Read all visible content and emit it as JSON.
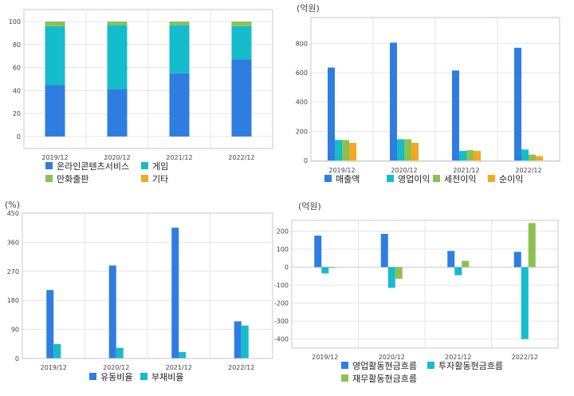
{
  "colors": {
    "blue": "#2f7de1",
    "teal": "#15bccb",
    "green": "#8cc152",
    "orange": "#f5a623",
    "grid": "#e6e6e6",
    "frame": "#c8c8c8"
  },
  "chart_data": [
    {
      "type": "bar",
      "stacked": true,
      "unit": "",
      "categories": [
        "2019/12",
        "2020/12",
        "2021/12",
        "2022/12"
      ],
      "ylim": [
        0,
        100
      ],
      "yticks": [
        0,
        20,
        40,
        60,
        80,
        100
      ],
      "series": [
        {
          "name": "온라인콘텐츠서비스",
          "values": [
            45,
            41,
            55,
            67
          ],
          "color": "#2f7de1"
        },
        {
          "name": "게임",
          "values": [
            51,
            56,
            42,
            29
          ],
          "color": "#15bccb"
        },
        {
          "name": "만화출판",
          "values": [
            4,
            3,
            3,
            4
          ],
          "color": "#8cc152"
        },
        {
          "name": "기타",
          "values": [
            0,
            0,
            0,
            0
          ],
          "color": "#f5a623"
        }
      ],
      "legend": "bottom-left"
    },
    {
      "type": "bar",
      "unit": "(억원)",
      "categories": [
        "2019/12",
        "2020/12",
        "2021/12",
        "2022/12"
      ],
      "ylim": [
        0,
        900
      ],
      "yticks": [
        0,
        200,
        400,
        600,
        800
      ],
      "series": [
        {
          "name": "매출액",
          "values": [
            635,
            805,
            615,
            770
          ],
          "color": "#2f7de1"
        },
        {
          "name": "영업이익",
          "values": [
            140,
            145,
            65,
            75
          ],
          "color": "#15bccb"
        },
        {
          "name": "세전이익",
          "values": [
            140,
            145,
            70,
            40
          ],
          "color": "#8cc152"
        },
        {
          "name": "순이익",
          "values": [
            120,
            120,
            65,
            30
          ],
          "color": "#f5a623"
        }
      ],
      "legend": "bottom-left"
    },
    {
      "type": "bar",
      "unit": "(%)",
      "categories": [
        "2019/12",
        "2020/12",
        "2021/12",
        "2022/12"
      ],
      "ylim": [
        0,
        450
      ],
      "yticks": [
        0,
        90,
        180,
        270,
        360,
        450
      ],
      "series": [
        {
          "name": "유동비율",
          "values": [
            212,
            288,
            405,
            115
          ],
          "color": "#2f7de1"
        },
        {
          "name": "부채비율",
          "values": [
            45,
            33,
            20,
            102
          ],
          "color": "#15bccb"
        }
      ],
      "legend": "bottom-center"
    },
    {
      "type": "bar",
      "unit": "(억원)",
      "categories": [
        "2019/12",
        "2020/12",
        "2021/12",
        "2022/12"
      ],
      "ylim": [
        -450,
        260
      ],
      "yticks": [
        200,
        100,
        0,
        -100,
        -200,
        -300,
        -400
      ],
      "series": [
        {
          "name": "영업활동현금흐름",
          "values": [
            175,
            185,
            90,
            85
          ],
          "color": "#2f7de1"
        },
        {
          "name": "투자활동현금흐름",
          "values": [
            -35,
            -115,
            -45,
            -400
          ],
          "color": "#15bccb"
        },
        {
          "name": "재무활동현금흐름",
          "values": [
            -5,
            -65,
            35,
            245
          ],
          "color": "#8cc152"
        }
      ],
      "legend": "bottom-left"
    }
  ]
}
